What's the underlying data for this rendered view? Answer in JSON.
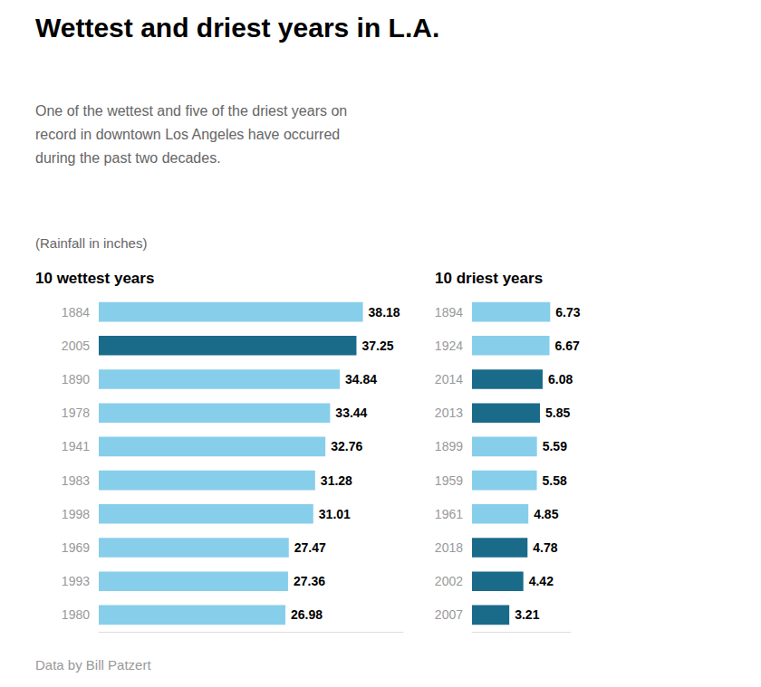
{
  "title": "Wettest and driest years in L.A.",
  "subtitle": "One of the wettest and five of the driest years on\nrecord in downtown Los Angeles have occurred\nduring the past two decades.",
  "annotations": [
    "(Rainfall in inches)",
    "Data by Bill Patzert"
  ],
  "chart_data": [
    {
      "type": "bar",
      "orientation": "horizontal",
      "title": "10 wettest years",
      "categories": [
        "1884",
        "2005",
        "1890",
        "1978",
        "1941",
        "1983",
        "1998",
        "1969",
        "1993",
        "1980"
      ],
      "values": [
        38.18,
        37.25,
        34.84,
        33.44,
        32.76,
        31.28,
        31.01,
        27.47,
        27.36,
        26.98
      ],
      "colors": [
        "#87CEEB",
        "#1A6B8A",
        "#87CEEB",
        "#87CEEB",
        "#87CEEB",
        "#87CEEB",
        "#87CEEB",
        "#87CEEB",
        "#87CEEB",
        "#87CEEB"
      ],
      "xlim": [
        0,
        44.0
      ],
      "data_labels": true,
      "tick_labels": "y",
      "grid": false
    },
    {
      "type": "bar",
      "orientation": "horizontal",
      "title": "10 driest years",
      "categories": [
        "1894",
        "1924",
        "2014",
        "2013",
        "1899",
        "1959",
        "1961",
        "2018",
        "2002",
        "2007"
      ],
      "values": [
        6.73,
        6.67,
        6.08,
        5.85,
        5.59,
        5.58,
        4.85,
        4.78,
        4.42,
        3.21
      ],
      "colors": [
        "#87CEEB",
        "#87CEEB",
        "#1A6B8A",
        "#1A6B8A",
        "#87CEEB",
        "#87CEEB",
        "#87CEEB",
        "#1A6B8A",
        "#1A6B8A",
        "#1A6B8A"
      ],
      "xlim": [
        0,
        8.5
      ],
      "data_labels": true,
      "tick_labels": "y",
      "grid": false
    }
  ]
}
